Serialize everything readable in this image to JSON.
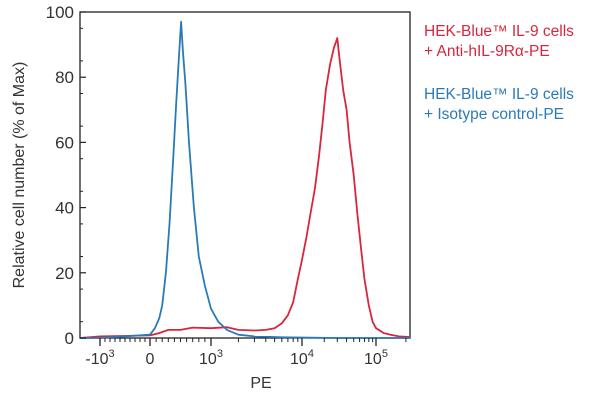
{
  "chart_data": {
    "type": "line",
    "xlabel": "PE",
    "ylabel": "Relative cell number (% of Max)",
    "ylim": [
      0,
      100
    ],
    "y_ticks": [
      "0",
      "20",
      "40",
      "60",
      "80",
      "100"
    ],
    "x_axis_scale": "biexponential",
    "x_ticks": [
      {
        "label": "-10",
        "exp": "3",
        "value": -1000
      },
      {
        "label": "0",
        "exp": "",
        "value": 0
      },
      {
        "label": "10",
        "exp": "3",
        "value": 1000
      },
      {
        "label": "10",
        "exp": "4",
        "value": 10000
      },
      {
        "label": "10",
        "exp": "5",
        "value": 100000
      }
    ],
    "grid": false,
    "legend_position": "right",
    "series": [
      {
        "name": "HEK-Blue™ IL-9 cells + Anti-hIL-9Rα-PE",
        "color": "#d7263d",
        "points": [
          [
            -3500,
            0
          ],
          [
            -1000,
            0.5
          ],
          [
            0,
            0.8
          ],
          [
            150,
            1.5
          ],
          [
            300,
            2.5
          ],
          [
            500,
            2.5
          ],
          [
            700,
            3.2
          ],
          [
            1000,
            3
          ],
          [
            1500,
            3.3
          ],
          [
            2000,
            2.5
          ],
          [
            3000,
            2.3
          ],
          [
            4000,
            2.5
          ],
          [
            5000,
            3
          ],
          [
            6000,
            4.5
          ],
          [
            7000,
            7
          ],
          [
            8000,
            11
          ],
          [
            9000,
            18
          ],
          [
            10000,
            24
          ],
          [
            11500,
            31
          ],
          [
            13000,
            38
          ],
          [
            15000,
            46
          ],
          [
            17000,
            56
          ],
          [
            19000,
            66
          ],
          [
            21000,
            76
          ],
          [
            24000,
            84
          ],
          [
            27000,
            89
          ],
          [
            30000,
            92
          ],
          [
            32000,
            86
          ],
          [
            36000,
            76
          ],
          [
            40000,
            70
          ],
          [
            44000,
            60
          ],
          [
            50000,
            50
          ],
          [
            56000,
            38
          ],
          [
            63000,
            27
          ],
          [
            70000,
            18
          ],
          [
            80000,
            10
          ],
          [
            90000,
            5
          ],
          [
            100000,
            3
          ],
          [
            120000,
            1.5
          ],
          [
            140000,
            1
          ],
          [
            170000,
            0.5
          ],
          [
            220000,
            0.3
          ]
        ]
      },
      {
        "name": "HEK-Blue™ IL-9 cells + Isotype control-PE",
        "color": "#2a7ab8",
        "points": [
          [
            -3500,
            0
          ],
          [
            -1000,
            0
          ],
          [
            0,
            1
          ],
          [
            80,
            3
          ],
          [
            150,
            6
          ],
          [
            200,
            10
          ],
          [
            260,
            20
          ],
          [
            320,
            35
          ],
          [
            380,
            55
          ],
          [
            430,
            72
          ],
          [
            470,
            85
          ],
          [
            510,
            97
          ],
          [
            540,
            88
          ],
          [
            580,
            78
          ],
          [
            640,
            60
          ],
          [
            720,
            40
          ],
          [
            800,
            25
          ],
          [
            900,
            16
          ],
          [
            1000,
            9
          ],
          [
            1200,
            5
          ],
          [
            1500,
            2.5
          ],
          [
            2000,
            1
          ],
          [
            3000,
            0.5
          ],
          [
            6000,
            0.2
          ],
          [
            30000,
            0
          ],
          [
            220000,
            0
          ]
        ]
      }
    ]
  },
  "legend": {
    "anti": {
      "line1": "HEK-Blue™ IL-9 cells",
      "line2": "+ Anti-hIL-9Rα-PE"
    },
    "isotype": {
      "line1": "HEK-Blue™ IL-9 cells",
      "line2": "+ Isotype control-PE"
    }
  }
}
